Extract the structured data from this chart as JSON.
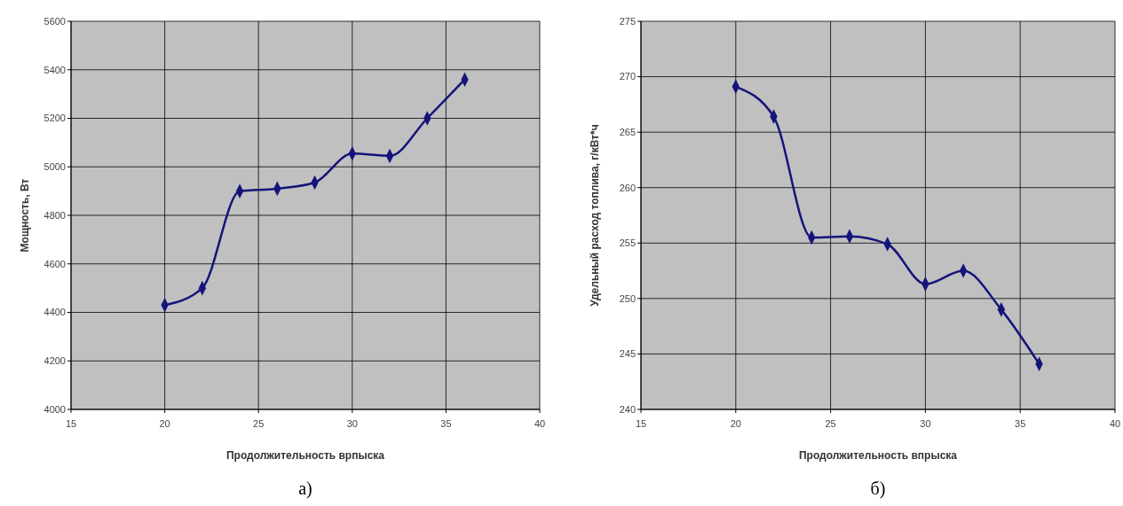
{
  "chart_data": [
    {
      "type": "line",
      "xlabel": "Продолжительность врпыска",
      "ylabel": "Мощность, Вт",
      "annotations": [
        "а)"
      ],
      "x": [
        20,
        22,
        24,
        26,
        28,
        30,
        32,
        34,
        36
      ],
      "series": [
        {
          "color": "#14147a",
          "values": [
            4430,
            4500,
            4900,
            4910,
            4935,
            5055,
            5045,
            5200,
            5360
          ]
        }
      ],
      "xlim": [
        15,
        40
      ],
      "xticks": [
        15,
        20,
        25,
        30,
        35,
        40
      ],
      "ylim": [
        4000,
        5600
      ],
      "yticks": [
        4000,
        4200,
        4400,
        4600,
        4800,
        5000,
        5200,
        5400,
        5600
      ],
      "grid": true,
      "marker": "diamond",
      "line_style": "solid"
    },
    {
      "type": "line",
      "xlabel": "Продолжительность впрыска",
      "ylabel": "Удельный расход топлива, г/кВт*ч",
      "annotations": [
        "б)"
      ],
      "x": [
        20,
        22,
        24,
        26,
        28,
        30,
        32,
        34,
        36
      ],
      "series": [
        {
          "color": "#14147a",
          "values": [
            269.1,
            266.4,
            255.5,
            255.6,
            254.9,
            251.3,
            252.5,
            249.0,
            244.1
          ]
        }
      ],
      "xlim": [
        15,
        40
      ],
      "xticks": [
        15,
        20,
        25,
        30,
        35,
        40
      ],
      "ylim": [
        240,
        275
      ],
      "yticks": [
        240,
        245,
        250,
        255,
        260,
        265,
        270,
        275
      ],
      "grid": true,
      "marker": "diamond",
      "line_style": "solid"
    }
  ]
}
